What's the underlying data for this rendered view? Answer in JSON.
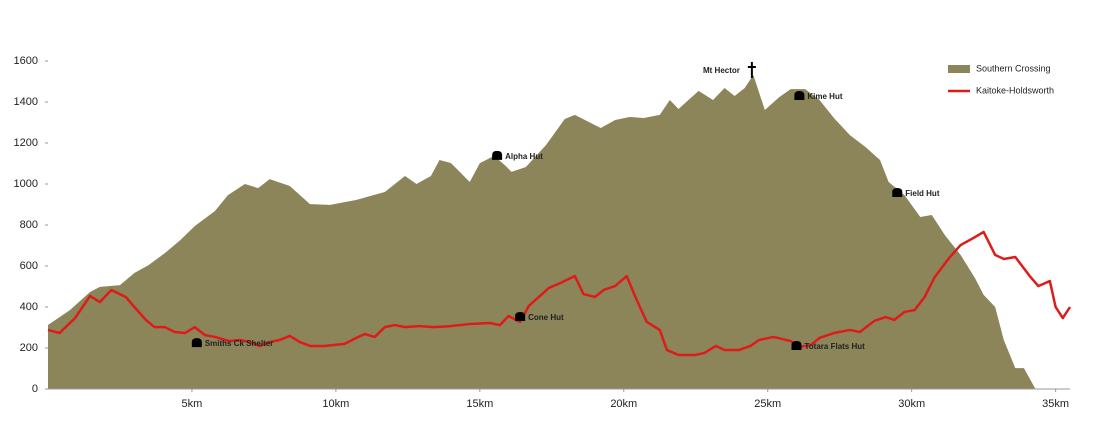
{
  "chart_data": {
    "type": "area-line",
    "xlim": [
      0,
      35.5
    ],
    "ylim": [
      0,
      1600
    ],
    "yticks": [
      0,
      200,
      400,
      600,
      800,
      1000,
      1200,
      1400,
      1600
    ],
    "xticks": [
      {
        "value": 5,
        "label": "5km"
      },
      {
        "value": 10,
        "label": "10km"
      },
      {
        "value": 15,
        "label": "15km"
      },
      {
        "value": 20,
        "label": "20km"
      },
      {
        "value": 25,
        "label": "25km"
      },
      {
        "value": 30,
        "label": "30km"
      },
      {
        "value": 35,
        "label": "35km"
      }
    ],
    "legend": "top-right",
    "series": [
      {
        "name": "Southern Crossing",
        "kind": "area",
        "color": "#8c855a",
        "x": [
          0,
          0.76,
          1.46,
          1.8,
          2.5,
          3.0,
          3.5,
          4.06,
          4.6,
          5.1,
          5.8,
          6.25,
          6.84,
          7.3,
          7.7,
          8.4,
          9.1,
          9.8,
          10.7,
          11.7,
          12.4,
          12.8,
          13.3,
          13.6,
          14.0,
          14.65,
          15.0,
          15.5,
          15.9,
          16.1,
          16.6,
          17.3,
          17.95,
          18.3,
          19.2,
          19.7,
          20.2,
          20.7,
          21.25,
          21.6,
          21.9,
          22.6,
          23.1,
          23.5,
          23.85,
          24.2,
          24.5,
          24.9,
          25.4,
          25.8,
          26.3,
          26.8,
          27.3,
          27.85,
          28.4,
          28.9,
          29.2,
          29.75,
          30.3,
          30.7,
          31.15,
          31.7,
          32.2,
          32.5,
          32.9,
          33.2,
          33.6,
          33.9,
          34.3
        ],
        "values": [
          312,
          385,
          473,
          498,
          507,
          566,
          605,
          663,
          727,
          795,
          868,
          946,
          1000,
          980,
          1024,
          990,
          902,
          898,
          922,
          961,
          1039,
          1000,
          1039,
          1117,
          1102,
          1010,
          1102,
          1137,
          1088,
          1059,
          1083,
          1190,
          1317,
          1337,
          1273,
          1312,
          1327,
          1322,
          1337,
          1410,
          1366,
          1454,
          1410,
          1468,
          1429,
          1468,
          1532,
          1361,
          1424,
          1463,
          1463,
          1410,
          1322,
          1239,
          1180,
          1117,
          1010,
          946,
          839,
          849,
          751,
          654,
          541,
          459,
          400,
          239,
          102,
          102,
          0
        ]
      },
      {
        "name": "Kaitoke-Holdsworth",
        "kind": "line",
        "color": "#dd1c1a",
        "x": [
          0,
          0.4,
          0.94,
          1.46,
          1.8,
          2.2,
          2.7,
          3.0,
          3.4,
          3.7,
          4.06,
          4.4,
          4.76,
          5.1,
          5.45,
          5.8,
          6.3,
          6.67,
          7.0,
          7.36,
          7.7,
          8.05,
          8.4,
          8.75,
          9.1,
          9.6,
          10.3,
          10.7,
          11.0,
          11.35,
          11.7,
          12.05,
          12.4,
          12.9,
          13.4,
          14.0,
          14.65,
          15.35,
          15.7,
          16.0,
          16.4,
          16.7,
          17.4,
          17.8,
          18.3,
          18.6,
          19.0,
          19.3,
          19.7,
          20.1,
          20.45,
          20.8,
          21.25,
          21.5,
          21.9,
          22.5,
          22.8,
          23.2,
          23.5,
          24.0,
          24.4,
          24.7,
          25.2,
          25.8,
          26.1,
          26.5,
          26.8,
          27.3,
          27.85,
          28.2,
          28.7,
          29.1,
          29.4,
          29.75,
          30.1,
          30.45,
          30.8,
          31.3,
          31.7,
          32.2,
          32.5,
          32.9,
          33.2,
          33.6,
          34.1,
          34.4,
          34.8,
          35.0,
          35.25,
          35.5
        ],
        "values": [
          288,
          273,
          346,
          454,
          424,
          483,
          449,
          400,
          337,
          302,
          302,
          278,
          273,
          302,
          263,
          254,
          234,
          239,
          229,
          210,
          229,
          239,
          259,
          229,
          210,
          210,
          220,
          249,
          268,
          254,
          302,
          312,
          302,
          307,
          302,
          307,
          317,
          322,
          312,
          356,
          327,
          405,
          493,
          517,
          551,
          463,
          449,
          483,
          502,
          551,
          434,
          327,
          288,
          190,
          166,
          166,
          176,
          210,
          190,
          190,
          210,
          239,
          254,
          234,
          205,
          215,
          249,
          273,
          288,
          278,
          332,
          351,
          337,
          376,
          385,
          449,
          546,
          639,
          702,
          741,
          766,
          654,
          634,
          644,
          551,
          502,
          527,
          400,
          346,
          400
        ]
      }
    ],
    "annotations": [
      {
        "text": "Smiths Ck Shelter",
        "x": 5.17,
        "y": 224,
        "marker": "hut"
      },
      {
        "text": "Alpha Hut",
        "x": 15.6,
        "y": 1137,
        "marker": "hut"
      },
      {
        "text": "Cone Hut",
        "x": 16.4,
        "y": 351,
        "marker": "hut"
      },
      {
        "text": "Mt Hector",
        "x": 24.45,
        "y": 1556,
        "marker": "peak"
      },
      {
        "text": "Kime Hut",
        "x": 26.1,
        "y": 1429,
        "marker": "hut"
      },
      {
        "text": "Field Hut",
        "x": 29.5,
        "y": 956,
        "marker": "hut"
      },
      {
        "text": "Totara Flats Hut",
        "x": 26.0,
        "y": 210,
        "marker": "hut"
      }
    ]
  }
}
